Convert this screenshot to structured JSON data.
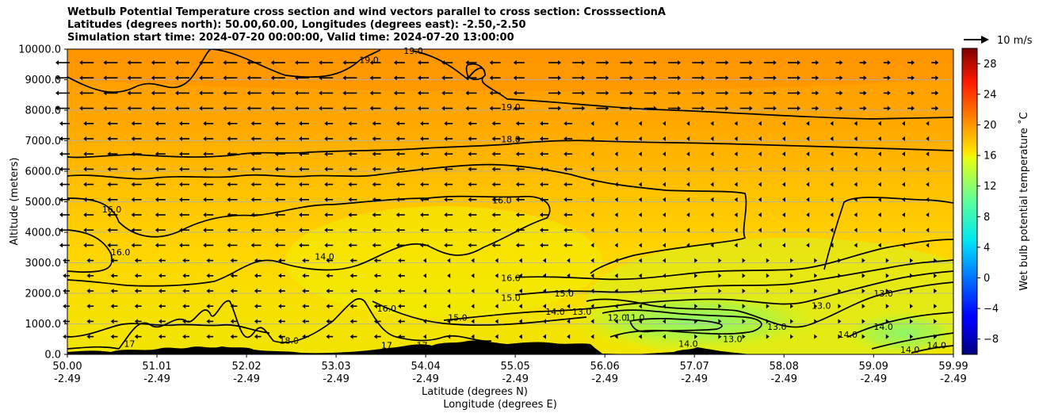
{
  "chart_data": {
    "type": "heatmap",
    "title_lines": [
      "Wetbulb Potential Temperature cross section and wind vectors parallel to cross section: CrosssectionA",
      "Latitudes (degrees north): 50.00,60.00, Longitudes (degrees east): -2.50,-2.50",
      "Simulation start time: 2024-07-20 00:00:00, Valid time: 2024-07-20 13:00:00"
    ],
    "xlabel": "Latitude (degrees N)",
    "xlabel2": "Longitude (degrees E)",
    "ylabel": "Altitude (meters)",
    "x_ticks": [
      {
        "lat": "50.00",
        "lon": "-2.49"
      },
      {
        "lat": "51.01",
        "lon": "-2.49"
      },
      {
        "lat": "52.02",
        "lon": "-2.49"
      },
      {
        "lat": "53.03",
        "lon": "-2.49"
      },
      {
        "lat": "54.04",
        "lon": "-2.49"
      },
      {
        "lat": "55.05",
        "lon": "-2.49"
      },
      {
        "lat": "56.06",
        "lon": "-2.49"
      },
      {
        "lat": "57.07",
        "lon": "-2.49"
      },
      {
        "lat": "58.08",
        "lon": "-2.49"
      },
      {
        "lat": "59.09",
        "lon": "-2.49"
      },
      {
        "lat": "59.99",
        "lon": "-2.49"
      }
    ],
    "xlim": [
      50.0,
      59.99
    ],
    "y_ticks": [
      "0.0",
      "1000.0",
      "2000.0",
      "3000.0",
      "4000.0",
      "5000.0",
      "6000.0",
      "7000.0",
      "8000.0",
      "9000.0",
      "10000.0"
    ],
    "ylim": [
      0,
      10000
    ],
    "grid": "horizontal",
    "colorbar": {
      "label": "Wet bulb potential temperature ˚C",
      "ticks": [
        "−8",
        "−4",
        "0",
        "4",
        "8",
        "12",
        "16",
        "20",
        "24",
        "28"
      ],
      "range": [
        -10,
        30
      ],
      "colormap": "jet"
    },
    "wind_key": {
      "label": "10 m/s"
    },
    "contour_labels": [
      {
        "text": "19.0",
        "lat": 53.4,
        "alt": 9550
      },
      {
        "text": "19.0",
        "lat": 53.9,
        "alt": 9850
      },
      {
        "text": "19.0",
        "lat": 55.0,
        "alt": 8000
      },
      {
        "text": "18.0",
        "lat": 55.0,
        "alt": 6950
      },
      {
        "text": "16.0",
        "lat": 54.9,
        "alt": 4950
      },
      {
        "text": "16.0",
        "lat": 50.5,
        "alt": 4650
      },
      {
        "text": "16.0",
        "lat": 50.6,
        "alt": 3250
      },
      {
        "text": "14.0",
        "lat": 52.9,
        "alt": 3100
      },
      {
        "text": "16.0",
        "lat": 55.0,
        "alt": 2400
      },
      {
        "text": "15.0",
        "lat": 55.0,
        "alt": 1750
      },
      {
        "text": "15.0",
        "lat": 55.6,
        "alt": 1900
      },
      {
        "text": "16.0",
        "lat": 53.6,
        "alt": 1400
      },
      {
        "text": "15.0",
        "lat": 54.4,
        "alt": 1100
      },
      {
        "text": "14.0",
        "lat": 55.5,
        "alt": 1300
      },
      {
        "text": "13.0",
        "lat": 55.8,
        "alt": 1300
      },
      {
        "text": "12.0",
        "lat": 56.2,
        "alt": 1100
      },
      {
        "text": "11.0",
        "lat": 56.4,
        "alt": 1100
      },
      {
        "text": "13.0",
        "lat": 57.5,
        "alt": 400
      },
      {
        "text": "13.0",
        "lat": 58.0,
        "alt": 800
      },
      {
        "text": "13.0",
        "lat": 58.5,
        "alt": 1500
      },
      {
        "text": "13.0",
        "lat": 59.2,
        "alt": 1900
      },
      {
        "text": "14.0",
        "lat": 58.8,
        "alt": 550
      },
      {
        "text": "14.0",
        "lat": 59.2,
        "alt": 800
      },
      {
        "text": "14.0",
        "lat": 57.0,
        "alt": 250
      },
      {
        "text": "14.0",
        "lat": 59.5,
        "alt": 50
      },
      {
        "text": "14.0",
        "lat": 59.8,
        "alt": 200
      },
      {
        "text": "17",
        "lat": 50.7,
        "alt": 250
      },
      {
        "text": "18.0",
        "lat": 52.5,
        "alt": 350
      },
      {
        "text": "17",
        "lat": 53.6,
        "alt": 200
      },
      {
        "text": "17",
        "lat": 54.0,
        "alt": 200
      }
    ]
  }
}
